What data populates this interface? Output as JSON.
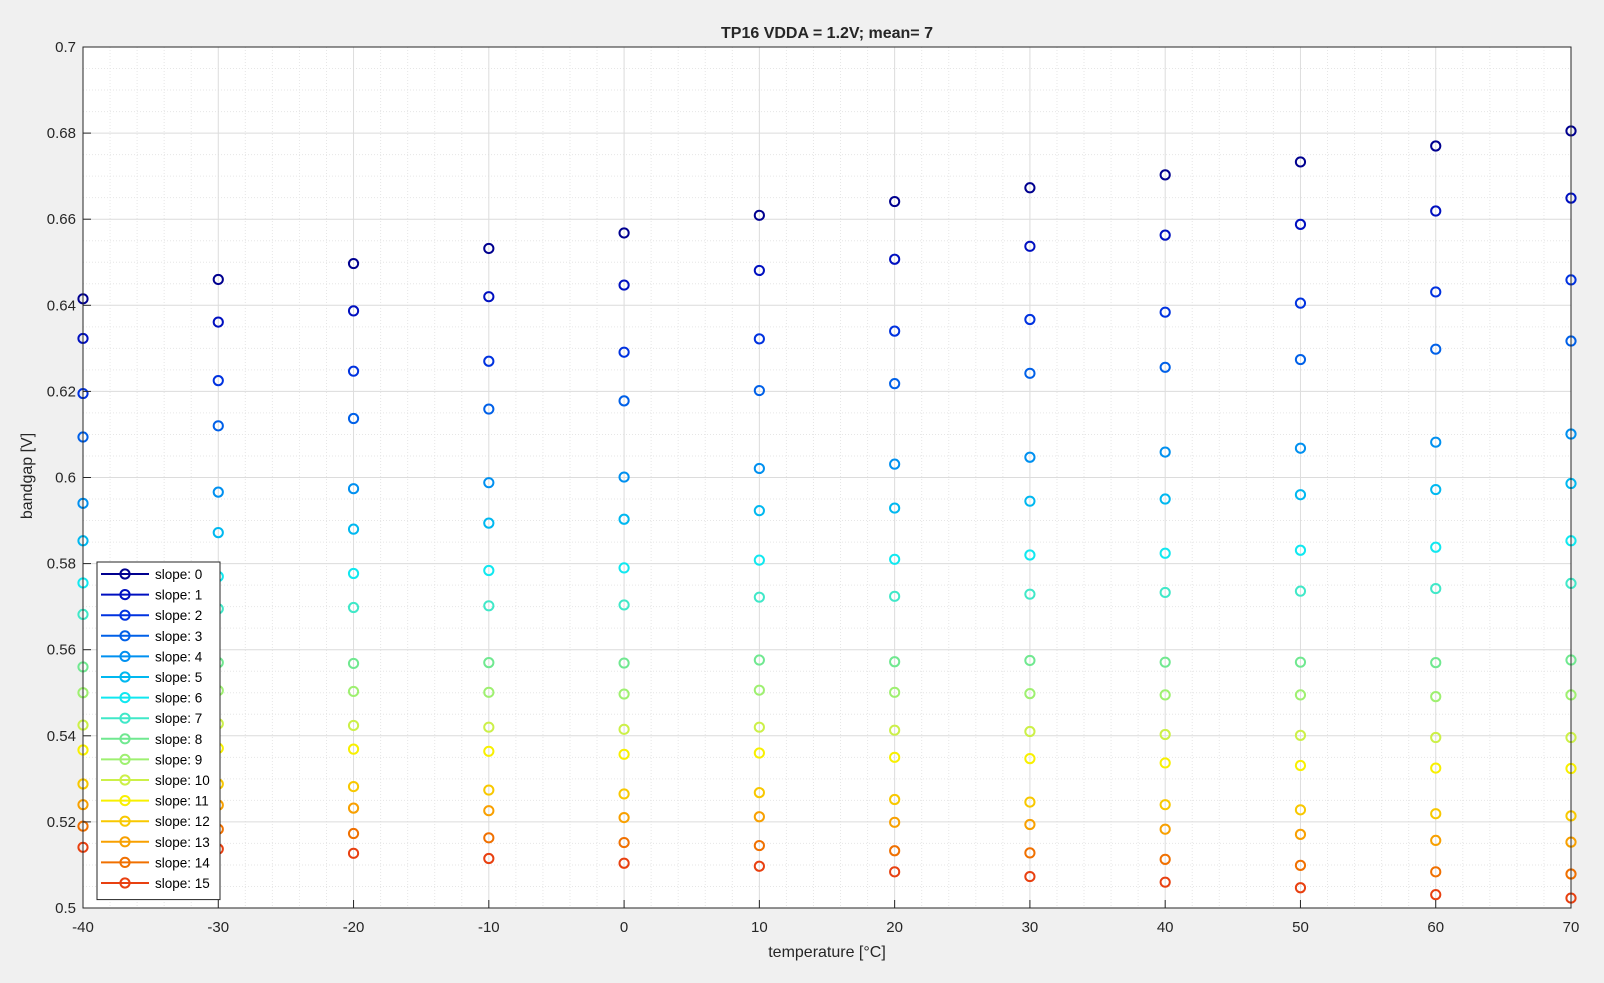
{
  "chart_data": {
    "type": "scatter",
    "title": "TP16 VDDA = 1.2V; mean= 7",
    "xlabel": "temperature [°C]",
    "ylabel": "bandgap [V]",
    "xlim": [
      -40,
      70
    ],
    "ylim": [
      0.5,
      0.7
    ],
    "xticks": [
      -40,
      -30,
      -20,
      -10,
      0,
      10,
      20,
      30,
      40,
      50,
      60,
      70
    ],
    "yticks": [
      0.5,
      0.52,
      0.54,
      0.56,
      0.58,
      0.6,
      0.62,
      0.64,
      0.66,
      0.68,
      0.7
    ],
    "xtick_labels": [
      "-40",
      "-30",
      "-20",
      "-10",
      "0",
      "10",
      "20",
      "30",
      "40",
      "50",
      "60",
      "70"
    ],
    "ytick_labels": [
      "0.5",
      "0.52",
      "0.54",
      "0.56",
      "0.58",
      "0.6",
      "0.62",
      "0.64",
      "0.66",
      "0.68",
      "0.7"
    ],
    "grid": "major and minor",
    "marker": "circle",
    "legend_position": "bottom-left",
    "x": [
      -40,
      -30,
      -20,
      -10,
      0,
      10,
      20,
      30,
      40,
      50,
      60,
      70
    ],
    "series": [
      {
        "name": "slope: 0",
        "color": "#00008f",
        "values": [
          0.6415,
          0.646,
          0.6497,
          0.6532,
          0.6568,
          0.6609,
          0.6641,
          0.6673,
          0.6703,
          0.6733,
          0.677,
          0.6805
        ]
      },
      {
        "name": "slope: 1",
        "color": "#0010c0",
        "values": [
          0.6323,
          0.6361,
          0.6387,
          0.642,
          0.6447,
          0.6481,
          0.6507,
          0.6537,
          0.6563,
          0.6588,
          0.6619,
          0.6649
        ]
      },
      {
        "name": "slope: 2",
        "color": "#0032e0",
        "values": [
          0.6195,
          0.6225,
          0.6247,
          0.627,
          0.6291,
          0.6322,
          0.634,
          0.6367,
          0.6384,
          0.6405,
          0.6431,
          0.6459
        ]
      },
      {
        "name": "slope: 3",
        "color": "#0060e8",
        "values": [
          0.6094,
          0.612,
          0.6137,
          0.6159,
          0.6178,
          0.6202,
          0.6218,
          0.6242,
          0.6256,
          0.6274,
          0.6298,
          0.6317
        ]
      },
      {
        "name": "slope: 4",
        "color": "#0090f0",
        "values": [
          0.594,
          0.5966,
          0.5974,
          0.5988,
          0.6001,
          0.6021,
          0.6031,
          0.6047,
          0.6059,
          0.6068,
          0.6082,
          0.6101
        ]
      },
      {
        "name": "slope: 5",
        "color": "#00b8f0",
        "values": [
          0.5853,
          0.5872,
          0.588,
          0.5894,
          0.5903,
          0.5923,
          0.5929,
          0.5945,
          0.595,
          0.596,
          0.5972,
          0.5986
        ]
      },
      {
        "name": "slope: 6",
        "color": "#10e8f0",
        "values": [
          0.5755,
          0.577,
          0.5777,
          0.5784,
          0.579,
          0.5808,
          0.581,
          0.582,
          0.5824,
          0.5831,
          0.5838,
          0.5853
        ]
      },
      {
        "name": "slope: 7",
        "color": "#40e8c8",
        "values": [
          0.5682,
          0.5695,
          0.5698,
          0.5702,
          0.5704,
          0.5722,
          0.5724,
          0.5729,
          0.5733,
          0.5736,
          0.5742,
          0.5754
        ]
      },
      {
        "name": "slope: 8",
        "color": "#70e890",
        "values": [
          0.556,
          0.557,
          0.5568,
          0.557,
          0.5569,
          0.5576,
          0.5572,
          0.5575,
          0.5571,
          0.5571,
          0.557,
          0.5576
        ]
      },
      {
        "name": "slope: 9",
        "color": "#9ef070",
        "values": [
          0.55,
          0.5505,
          0.5503,
          0.5501,
          0.5497,
          0.5506,
          0.5501,
          0.5498,
          0.5495,
          0.5495,
          0.5491,
          0.5495
        ]
      },
      {
        "name": "slope: 10",
        "color": "#ccf048",
        "values": [
          0.5425,
          0.5428,
          0.5424,
          0.542,
          0.5415,
          0.542,
          0.5413,
          0.541,
          0.5403,
          0.5401,
          0.5396,
          0.5396
        ]
      },
      {
        "name": "slope: 11",
        "color": "#f8f000",
        "values": [
          0.5367,
          0.5371,
          0.5369,
          0.5364,
          0.5357,
          0.536,
          0.535,
          0.5347,
          0.5337,
          0.5331,
          0.5325,
          0.5324
        ]
      },
      {
        "name": "slope: 12",
        "color": "#f8c800",
        "values": [
          0.5288,
          0.5288,
          0.5282,
          0.5274,
          0.5265,
          0.5268,
          0.5252,
          0.5246,
          0.524,
          0.5228,
          0.5219,
          0.5214
        ]
      },
      {
        "name": "slope: 13",
        "color": "#f8a000",
        "values": [
          0.524,
          0.5239,
          0.5232,
          0.5226,
          0.521,
          0.5212,
          0.5199,
          0.5194,
          0.5183,
          0.5171,
          0.5157,
          0.5153
        ]
      },
      {
        "name": "slope: 14",
        "color": "#f07000",
        "values": [
          0.519,
          0.5183,
          0.5173,
          0.5163,
          0.5152,
          0.5145,
          0.5133,
          0.5128,
          0.5113,
          0.5099,
          0.5084,
          0.5079
        ]
      },
      {
        "name": "slope: 15",
        "color": "#e84010",
        "values": [
          0.5141,
          0.5137,
          0.5127,
          0.5115,
          0.5104,
          0.5097,
          0.5084,
          0.5073,
          0.506,
          0.5047,
          0.5031,
          0.5023
        ]
      }
    ]
  }
}
